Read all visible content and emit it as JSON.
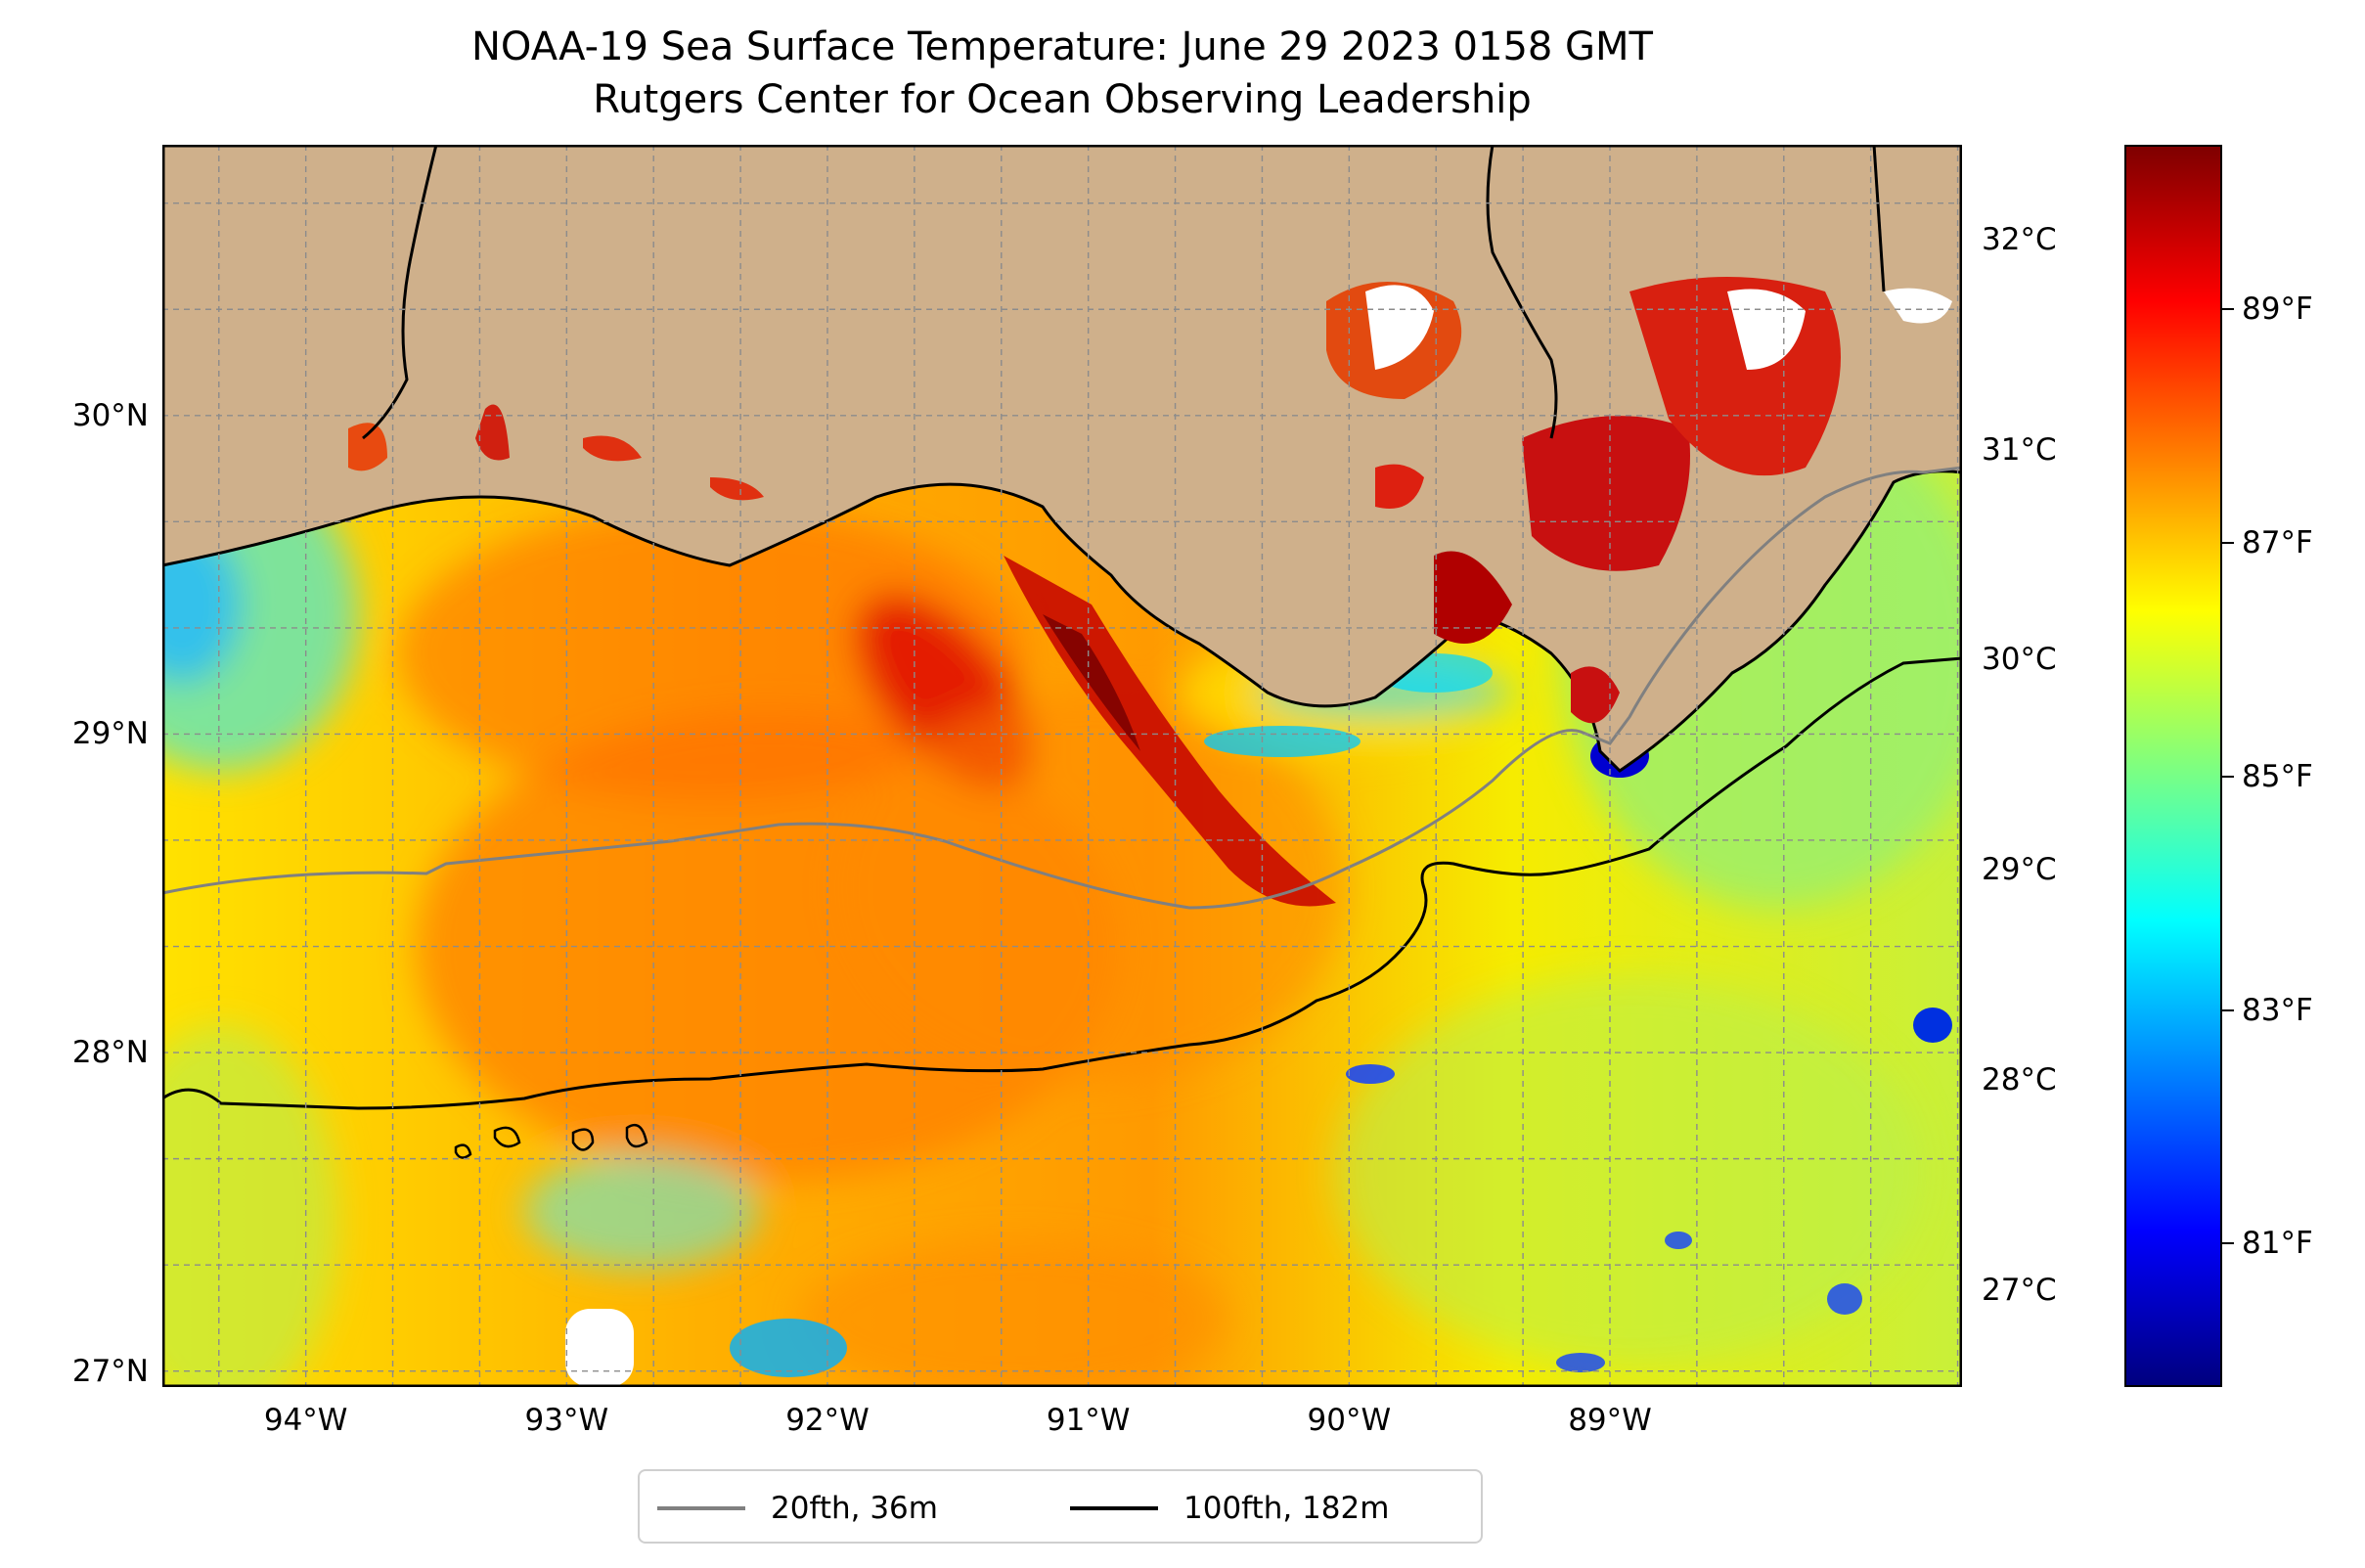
{
  "title": {
    "line1": "NOAA-19 Sea Surface Temperature: June 29 2023 0158 GMT",
    "line2": "Rutgers Center for Ocean Observing Leadership"
  },
  "map": {
    "lon_range": [
      -94.55,
      -87.65
    ],
    "lat_range": [
      26.95,
      30.85
    ],
    "lat_ticks": [
      {
        "value": 27,
        "label": "27°N"
      },
      {
        "value": 28,
        "label": "28°N"
      },
      {
        "value": 29,
        "label": "29°N"
      },
      {
        "value": 30,
        "label": "30°N"
      }
    ],
    "lon_ticks": [
      {
        "value": -94,
        "label": "94°W"
      },
      {
        "value": -93,
        "label": "93°W"
      },
      {
        "value": -92,
        "label": "92°W"
      },
      {
        "value": -91,
        "label": "91°W"
      },
      {
        "value": -90,
        "label": "90°W"
      },
      {
        "value": -89,
        "label": "89°W"
      }
    ],
    "land_color": "#cfb08b",
    "gridlines": "dashed gray, every 1/3 degree"
  },
  "colorbar": {
    "colormap": "jet",
    "colors": [
      "#00007f",
      "#0000ff",
      "#007fff",
      "#00ffff",
      "#7fff7f",
      "#ffff00",
      "#ff7f00",
      "#ff0000",
      "#7f0000"
    ],
    "celsius_ticks": [
      {
        "value": 27,
        "label": "27°C"
      },
      {
        "value": 28,
        "label": "28°C"
      },
      {
        "value": 29,
        "label": "29°C"
      },
      {
        "value": 30,
        "label": "30°C"
      },
      {
        "value": 31,
        "label": "31°C"
      },
      {
        "value": 32,
        "label": "32°C"
      }
    ],
    "fahrenheit_ticks": [
      {
        "value": 81,
        "label": "81°F"
      },
      {
        "value": 83,
        "label": "83°F"
      },
      {
        "value": 85,
        "label": "85°F"
      },
      {
        "value": 87,
        "label": "87°F"
      },
      {
        "value": 89,
        "label": "89°F"
      }
    ]
  },
  "legend": {
    "items": [
      {
        "label": "20fth, 36m",
        "color": "#808080"
      },
      {
        "label": "100fth, 182m",
        "color": "#000000"
      }
    ]
  }
}
